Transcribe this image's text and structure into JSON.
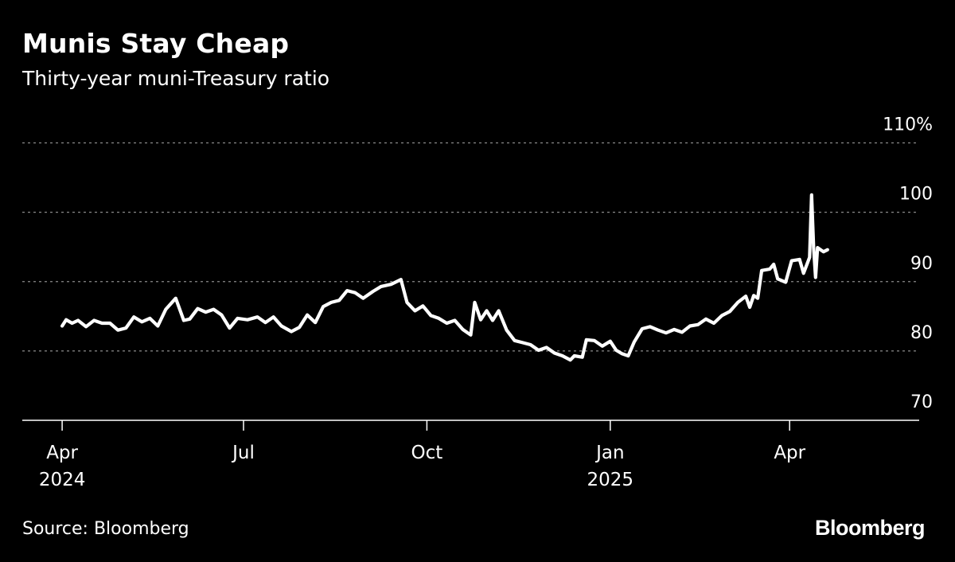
{
  "header": {
    "title": "Munis Stay Cheap",
    "subtitle": "Thirty-year muni-Treasury ratio"
  },
  "footer": {
    "source": "Source: Bloomberg",
    "brand": "Bloomberg"
  },
  "chart_data": {
    "type": "line",
    "title": "Munis Stay Cheap",
    "subtitle": "Thirty-year muni-Treasury ratio",
    "ylim": [
      70,
      110
    ],
    "yticks": [
      {
        "value": 110,
        "label": "110%"
      },
      {
        "value": 100,
        "label": "100"
      },
      {
        "value": 90,
        "label": "90"
      },
      {
        "value": 80,
        "label": "80"
      },
      {
        "value": 70,
        "label": "70"
      }
    ],
    "grid": true,
    "xlim": [
      "2024-03-12",
      "2025-06-05"
    ],
    "xticks": [
      {
        "date": "2024-04-01",
        "label": "Apr",
        "sublabel": "2024"
      },
      {
        "date": "2024-07-01",
        "label": "Jul",
        "sublabel": ""
      },
      {
        "date": "2024-10-01",
        "label": "Oct",
        "sublabel": ""
      },
      {
        "date": "2025-01-01",
        "label": "Jan",
        "sublabel": "2025"
      },
      {
        "date": "2025-04-01",
        "label": "Apr",
        "sublabel": ""
      }
    ],
    "line_color": "#ffffff",
    "series": [
      {
        "values": [
          [
            "2024-04-01",
            83.6
          ],
          [
            "2024-04-03",
            84.5
          ],
          [
            "2024-04-06",
            84.0
          ],
          [
            "2024-04-09",
            84.4
          ],
          [
            "2024-04-13",
            83.5
          ],
          [
            "2024-04-17",
            84.4
          ],
          [
            "2024-04-21",
            84.0
          ],
          [
            "2024-04-25",
            84.0
          ],
          [
            "2024-04-29",
            83.0
          ],
          [
            "2024-05-03",
            83.3
          ],
          [
            "2024-05-07",
            84.9
          ],
          [
            "2024-05-11",
            84.2
          ],
          [
            "2024-05-15",
            84.7
          ],
          [
            "2024-05-19",
            83.6
          ],
          [
            "2024-05-23",
            86.0
          ],
          [
            "2024-05-28",
            87.6
          ],
          [
            "2024-06-01",
            84.4
          ],
          [
            "2024-06-04",
            84.6
          ],
          [
            "2024-06-08",
            86.1
          ],
          [
            "2024-06-12",
            85.6
          ],
          [
            "2024-06-16",
            86.0
          ],
          [
            "2024-06-20",
            85.2
          ],
          [
            "2024-06-24",
            83.3
          ],
          [
            "2024-06-28",
            84.7
          ],
          [
            "2024-07-03",
            84.5
          ],
          [
            "2024-07-08",
            84.9
          ],
          [
            "2024-07-12",
            84.1
          ],
          [
            "2024-07-16",
            84.9
          ],
          [
            "2024-07-20",
            83.6
          ],
          [
            "2024-07-25",
            82.8
          ],
          [
            "2024-07-29",
            83.4
          ],
          [
            "2024-08-02",
            85.2
          ],
          [
            "2024-08-06",
            84.1
          ],
          [
            "2024-08-10",
            86.4
          ],
          [
            "2024-08-14",
            87.0
          ],
          [
            "2024-08-18",
            87.3
          ],
          [
            "2024-08-22",
            88.7
          ],
          [
            "2024-08-26",
            88.4
          ],
          [
            "2024-08-30",
            87.6
          ],
          [
            "2024-09-04",
            88.6
          ],
          [
            "2024-09-08",
            89.3
          ],
          [
            "2024-09-13",
            89.6
          ],
          [
            "2024-09-18",
            90.3
          ],
          [
            "2024-09-21",
            87.0
          ],
          [
            "2024-09-25",
            85.8
          ],
          [
            "2024-09-29",
            86.5
          ],
          [
            "2024-10-03",
            85.1
          ],
          [
            "2024-10-07",
            84.7
          ],
          [
            "2024-10-11",
            84.0
          ],
          [
            "2024-10-15",
            84.4
          ],
          [
            "2024-10-19",
            83.1
          ],
          [
            "2024-10-23",
            82.3
          ],
          [
            "2024-10-25",
            87.0
          ],
          [
            "2024-10-28",
            84.5
          ],
          [
            "2024-10-31",
            85.8
          ],
          [
            "2024-11-03",
            84.4
          ],
          [
            "2024-11-06",
            85.8
          ],
          [
            "2024-11-10",
            83.0
          ],
          [
            "2024-11-14",
            81.5
          ],
          [
            "2024-11-18",
            81.2
          ],
          [
            "2024-11-22",
            80.9
          ],
          [
            "2024-11-26",
            80.1
          ],
          [
            "2024-11-30",
            80.5
          ],
          [
            "2024-12-04",
            79.7
          ],
          [
            "2024-12-08",
            79.3
          ],
          [
            "2024-12-12",
            78.7
          ],
          [
            "2024-12-14",
            79.3
          ],
          [
            "2024-12-18",
            79.1
          ],
          [
            "2024-12-20",
            81.6
          ],
          [
            "2024-12-24",
            81.5
          ],
          [
            "2024-12-28",
            80.7
          ],
          [
            "2025-01-01",
            81.4
          ],
          [
            "2025-01-04",
            80.1
          ],
          [
            "2025-01-07",
            79.6
          ],
          [
            "2025-01-10",
            79.3
          ],
          [
            "2025-01-13",
            81.3
          ],
          [
            "2025-01-17",
            83.2
          ],
          [
            "2025-01-21",
            83.5
          ],
          [
            "2025-01-25",
            83.0
          ],
          [
            "2025-01-29",
            82.6
          ],
          [
            "2025-02-02",
            83.1
          ],
          [
            "2025-02-06",
            82.7
          ],
          [
            "2025-02-10",
            83.6
          ],
          [
            "2025-02-14",
            83.8
          ],
          [
            "2025-02-18",
            84.6
          ],
          [
            "2025-02-22",
            84.0
          ],
          [
            "2025-02-26",
            85.1
          ],
          [
            "2025-03-02",
            85.7
          ],
          [
            "2025-03-06",
            87.0
          ],
          [
            "2025-03-10",
            87.9
          ],
          [
            "2025-03-12",
            86.3
          ],
          [
            "2025-03-14",
            88.0
          ],
          [
            "2025-03-16",
            87.6
          ],
          [
            "2025-03-18",
            91.6
          ],
          [
            "2025-03-22",
            91.8
          ],
          [
            "2025-03-24",
            92.5
          ],
          [
            "2025-03-26",
            90.4
          ],
          [
            "2025-03-30",
            89.9
          ],
          [
            "2025-04-02",
            93.0
          ],
          [
            "2025-04-06",
            93.2
          ],
          [
            "2025-04-08",
            91.2
          ],
          [
            "2025-04-11",
            93.5
          ],
          [
            "2025-04-12",
            102.5
          ],
          [
            "2025-04-13",
            95.0
          ],
          [
            "2025-04-14",
            90.6
          ],
          [
            "2025-04-15",
            94.9
          ],
          [
            "2025-04-18",
            94.3
          ],
          [
            "2025-04-20",
            94.6
          ]
        ]
      }
    ]
  }
}
